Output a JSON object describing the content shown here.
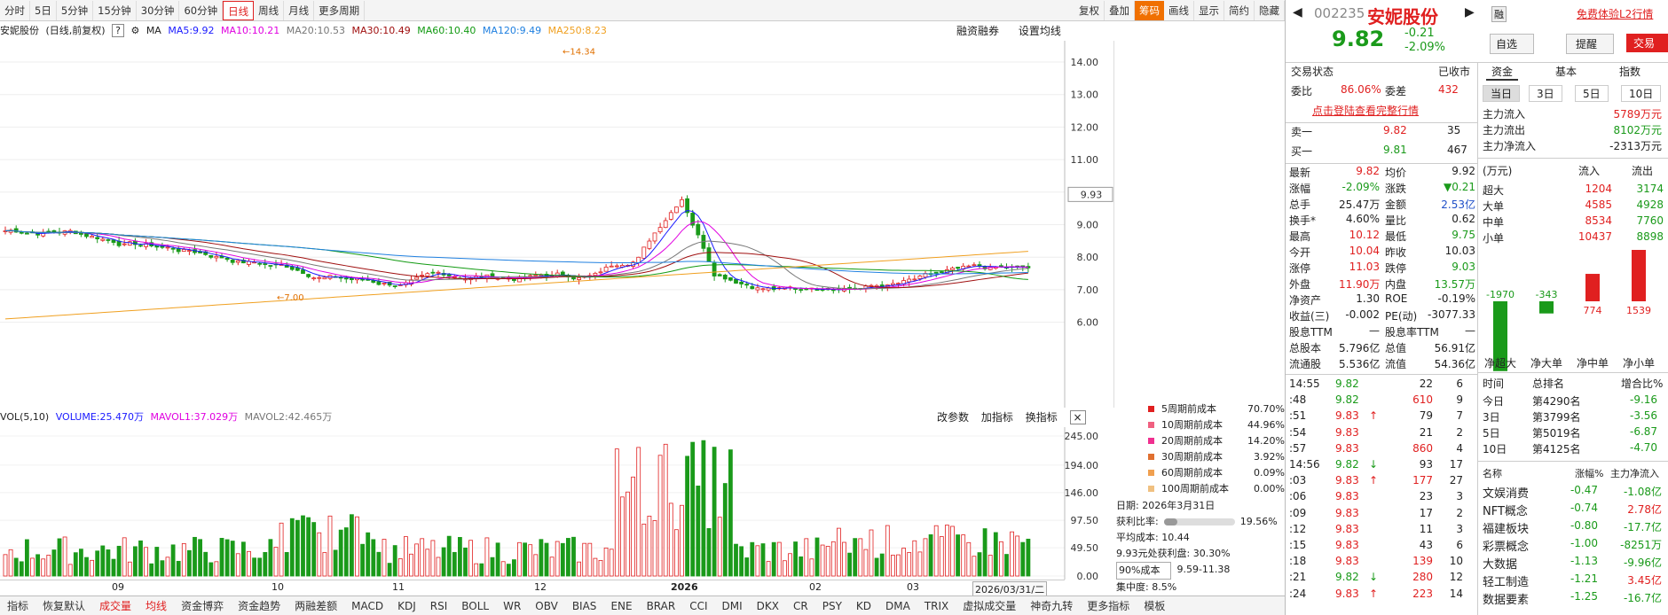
{
  "toolbar": {
    "left": [
      "分时",
      "5日",
      "5分钟",
      "15分钟",
      "30分钟",
      "60分钟",
      "日线",
      "周线",
      "月线",
      "更多周期"
    ],
    "active": "日线",
    "right": [
      "复权",
      "叠加",
      "筹码",
      "画线",
      "显示",
      "简约",
      "隐藏"
    ]
  },
  "ma": {
    "stock": "安妮股份",
    "mode": "(日线,前复权)",
    "ma_label": "MA",
    "ma5": "MA5:9.92",
    "ma10": "MA10:10.21",
    "ma20": "MA20:10.53",
    "ma30": "MA30:10.49",
    "ma60": "MA60:10.40",
    "ma120": "MA120:9.49",
    "ma250": "MA250:8.23",
    "margin": "融资融券",
    "setting": "设置均线"
  },
  "colors": {
    "ma5": "#1a1aff",
    "ma10": "#e000e0",
    "ma20": "#777777",
    "ma30": "#a01010",
    "ma60": "#129a12",
    "ma120": "#2080e0",
    "ma250": "#f0a020",
    "up": "#e02020",
    "down": "#1a9a1a"
  },
  "price_axis": [
    "14.00",
    "13.00",
    "12.00",
    "11.00",
    "10.00",
    "9.00",
    "8.00",
    "7.00",
    "6.00"
  ],
  "price_tag": "9.93",
  "annot": {
    "high": "14.34",
    "low": "7.00"
  },
  "vol": {
    "label": "VOL(5,10)",
    "volume": "VOLUME:25.470万",
    "mavol1": "MAVOL1:37.029万",
    "mavol2": "MAVOL2:42.465万",
    "tools": [
      "改参数",
      "加指标",
      "换指标"
    ],
    "axis": [
      "245.00",
      "194.00",
      "146.00",
      "97.50",
      "49.50",
      "0.00"
    ]
  },
  "xaxis": {
    "labels": [
      "09",
      "10",
      "11",
      "12",
      "2026",
      "02",
      "03"
    ],
    "date": "2026/03/31/二"
  },
  "bottom_tabs": [
    "指标",
    "恢复默认",
    "成交量",
    "均线",
    "资金博弈",
    "资金趋势",
    "两融差额",
    "MACD",
    "KDJ",
    "RSI",
    "BOLL",
    "WR",
    "OBV",
    "BIAS",
    "ENE",
    "BRAR",
    "CCI",
    "DMI",
    "DKX",
    "CR",
    "PSY",
    "KD",
    "DMA",
    "TRIX",
    "虚拟成交量",
    "神奇九转",
    "更多指标",
    "模板"
  ],
  "legend": [
    {
      "label": "5周期前成本",
      "pct": "70.70%",
      "color": "#e02020"
    },
    {
      "label": "10周期前成本",
      "pct": "44.96%",
      "color": "#f06080"
    },
    {
      "label": "20周期前成本",
      "pct": "14.20%",
      "color": "#f03090"
    },
    {
      "label": "30周期前成本",
      "pct": "3.92%",
      "color": "#e07030"
    },
    {
      "label": "60周期前成本",
      "pct": "0.09%",
      "color": "#f0a050"
    },
    {
      "label": "100周期前成本",
      "pct": "0.00%",
      "color": "#f0c080"
    }
  ],
  "cost": {
    "date": "日期: 2026年3月31日",
    "profit_label": "获利比率:",
    "profit": "19.56%",
    "avg": "平均成本: 10.44",
    "profit_at": "9.93元处获利盘: 30.30%",
    "range_sel": "90%成本",
    "range": "9.59-11.38",
    "conc": "集中度: 8.5%"
  },
  "stock": {
    "code": "002235",
    "name": "安妮股份",
    "tag": "融",
    "price": "9.82",
    "chg": "-0.21",
    "pct": "-2.09%",
    "promo": "免费体验L2行情",
    "btn1": "自选",
    "btn2": "提醒",
    "btn3": "交易"
  },
  "status": {
    "label": "交易状态",
    "value": "已收市",
    "wb_l": "委比",
    "wb": "86.06%",
    "wc_l": "委差",
    "wc": "432",
    "link": "点击登陆查看完整行情"
  },
  "book": [
    {
      "l": "卖一",
      "p": "9.82",
      "v": "35"
    },
    {
      "l": "买一",
      "p": "9.81",
      "v": "467"
    }
  ],
  "stats": [
    [
      "最新",
      "9.82",
      "均价",
      "9.92"
    ],
    [
      "涨幅",
      "-2.09%",
      "涨跌",
      "▼0.21"
    ],
    [
      "总手",
      "25.47万",
      "金额",
      "2.53亿"
    ],
    [
      "换手*",
      "4.60%",
      "量比",
      "0.62"
    ],
    [
      "最高",
      "10.12",
      "最低",
      "9.75"
    ],
    [
      "今开",
      "10.04",
      "昨收",
      "10.03"
    ],
    [
      "涨停",
      "11.03",
      "跌停",
      "9.03"
    ],
    [
      "外盘",
      "11.90万",
      "内盘",
      "13.57万"
    ],
    [
      "净资产",
      "1.30",
      "ROE",
      "-0.19%"
    ],
    [
      "收益(三)",
      "-0.002",
      "PE(动)",
      "-3077.33"
    ],
    [
      "股息TTM",
      "—",
      "股息率TTM",
      "—"
    ],
    [
      "总股本",
      "5.796亿",
      "总值",
      "56.91亿"
    ],
    [
      "流通股",
      "5.536亿",
      "流值",
      "54.36亿"
    ]
  ],
  "ticks": [
    {
      "t": "14:55",
      "p": "9.82",
      "v": "22",
      "n": "6",
      "a": ""
    },
    {
      "t": ":48",
      "p": "9.82",
      "v": "610",
      "n": "9",
      "a": ""
    },
    {
      "t": ":51",
      "p": "9.83",
      "v": "79",
      "n": "7",
      "a": "up"
    },
    {
      "t": ":54",
      "p": "9.83",
      "v": "21",
      "n": "2",
      "a": ""
    },
    {
      "t": ":57",
      "p": "9.83",
      "v": "860",
      "n": "4",
      "a": ""
    },
    {
      "t": "14:56",
      "p": "9.82",
      "v": "93",
      "n": "17",
      "a": "dn"
    },
    {
      "t": ":03",
      "p": "9.83",
      "v": "177",
      "n": "27",
      "a": "up"
    },
    {
      "t": ":06",
      "p": "9.83",
      "v": "23",
      "n": "3",
      "a": ""
    },
    {
      "t": ":09",
      "p": "9.83",
      "v": "17",
      "n": "2",
      "a": ""
    },
    {
      "t": ":12",
      "p": "9.83",
      "v": "11",
      "n": "3",
      "a": ""
    },
    {
      "t": ":15",
      "p": "9.83",
      "v": "43",
      "n": "6",
      "a": ""
    },
    {
      "t": ":18",
      "p": "9.83",
      "v": "139",
      "n": "10",
      "a": ""
    },
    {
      "t": ":21",
      "p": "9.82",
      "v": "280",
      "n": "12",
      "a": "dn"
    },
    {
      "t": ":24",
      "p": "9.83",
      "v": "223",
      "n": "14",
      "a": "up"
    }
  ],
  "fund": {
    "tabs": [
      "资金",
      "基本",
      "指数"
    ],
    "periods": [
      "当日",
      "3日",
      "5日",
      "10日"
    ],
    "main": [
      [
        "主力流入",
        "5789万元"
      ],
      [
        "主力流出",
        "8102万元"
      ],
      [
        "主力净流入",
        "-2313万元"
      ]
    ],
    "head": [
      "(万元)",
      "流入",
      "流出"
    ],
    "rows": [
      [
        "超大",
        "1204",
        "3174"
      ],
      [
        "大单",
        "4585",
        "4928"
      ],
      [
        "中单",
        "8534",
        "7760"
      ],
      [
        "小单",
        "10437",
        "8898"
      ]
    ],
    "bars": [
      {
        "label": "净超大",
        "value": -1970
      },
      {
        "label": "净大单",
        "value": -343
      },
      {
        "label": "净中单",
        "value": 774
      },
      {
        "label": "净小单",
        "value": 1539
      }
    ]
  },
  "rank": {
    "head": [
      "时间",
      "总排名",
      "增合比%"
    ],
    "rows": [
      [
        "今日",
        "第4290名",
        "-9.16"
      ],
      [
        "3日",
        "第3799名",
        "-3.56"
      ],
      [
        "5日",
        "第5019名",
        "-6.87"
      ],
      [
        "10日",
        "第4125名",
        "-4.70"
      ]
    ]
  },
  "sectors": {
    "head": [
      "名称",
      "涨幅%",
      "主力净流入"
    ],
    "rows": [
      [
        "文娱消费",
        "-0.47",
        "-1.08亿"
      ],
      [
        "NFT概念",
        "-0.74",
        "2.78亿"
      ],
      [
        "福建板块",
        "-0.80",
        "-17.7亿"
      ],
      [
        "彩票概念",
        "-1.00",
        "-8251万"
      ],
      [
        "大数据",
        "-1.13",
        "-9.96亿"
      ],
      [
        "轻工制造",
        "-1.21",
        "3.45亿"
      ],
      [
        "数据要素",
        "-1.25",
        "-16.7亿"
      ]
    ]
  }
}
